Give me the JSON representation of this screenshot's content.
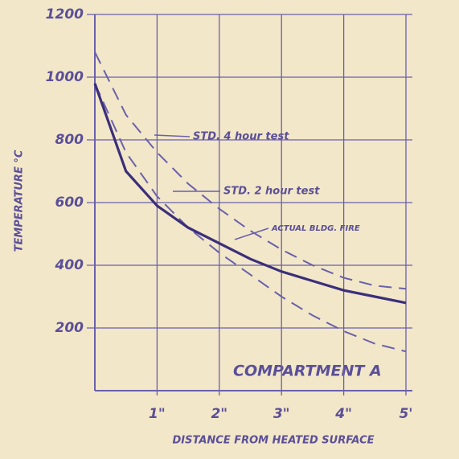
{
  "chart_data": {
    "type": "line",
    "annotation": "COMPARTMENT A",
    "x_label": "DISTANCE FROM HEATED SURFACE",
    "y_label": "TEMPERATURE °C",
    "x": [
      0,
      0.5,
      1,
      1.5,
      2,
      2.5,
      3,
      3.5,
      4,
      4.5,
      5
    ],
    "series": [
      {
        "name": "STD. 4 hour test",
        "color": "#6a60aa",
        "dash": true,
        "values": [
          1080,
          880,
          760,
          660,
          580,
          510,
          450,
          400,
          360,
          335,
          325
        ]
      },
      {
        "name": "STD. 2 hour test",
        "color": "#6a60aa",
        "dash": true,
        "values": [
          980,
          760,
          620,
          520,
          440,
          370,
          300,
          240,
          190,
          150,
          125
        ]
      },
      {
        "name": "ACTUAL BLDG. FIRE",
        "color": "#3b2f7a",
        "dash": false,
        "values": [
          980,
          700,
          590,
          520,
          470,
          420,
          380,
          350,
          320,
          300,
          280
        ]
      }
    ],
    "xlim": [
      0,
      5
    ],
    "xticks": [
      {
        "value": 1,
        "label": "1\""
      },
      {
        "value": 2,
        "label": "2\""
      },
      {
        "value": 3,
        "label": "3\""
      },
      {
        "value": 4,
        "label": "4\""
      },
      {
        "value": 5,
        "label": "5'"
      }
    ],
    "ylim": [
      0,
      1200
    ],
    "yticks": [
      200,
      400,
      600,
      800,
      1000,
      1200
    ],
    "grid": true
  }
}
